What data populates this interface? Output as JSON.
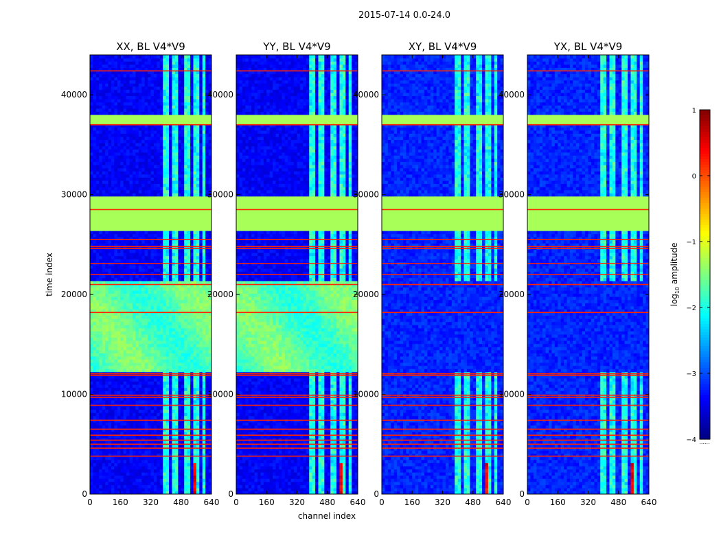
{
  "chart_data": {
    "type": "heatmap",
    "suptitle": "2015-07-14 0.0-24.0",
    "xlabel": "channel index",
    "ylabel": "time index",
    "xlim": [
      0,
      640
    ],
    "ylim": [
      0,
      44000
    ],
    "xticks": [
      0,
      160,
      320,
      480,
      640
    ],
    "yticks": [
      0,
      10000,
      20000,
      30000,
      40000
    ],
    "colormap": "jet",
    "colorbar": {
      "label": "log",
      "label_sub": "10",
      "label_rest": " amplitude",
      "range": [
        -4,
        1
      ],
      "ticks": [
        1,
        0,
        -1,
        -2,
        -3,
        -4
      ],
      "tick_labels": [
        "1",
        "0",
        "−1",
        "−2",
        "−3",
        "−4"
      ],
      "footnote": "......"
    },
    "panels": [
      {
        "title": "XX, BL V4*V9",
        "pol": "XX",
        "cross": false
      },
      {
        "title": "YY, BL V4*V9",
        "pol": "YY",
        "cross": false
      },
      {
        "title": "XY, BL V4*V9",
        "pol": "XY",
        "cross": true
      },
      {
        "title": "YX, BL V4*V9",
        "pol": "YX",
        "cross": true
      }
    ],
    "features": {
      "flagged_bands": [
        [
          26500,
          29700
        ],
        [
          37200,
          37900
        ]
      ],
      "flagged_value": -1.3,
      "background_value_auto": -3.4,
      "background_value_cross": -3.2,
      "auto_bright_region": [
        12400,
        21300
      ],
      "auto_bright_value": -1.7,
      "rfi_channels": [
        [
          390,
          415
        ],
        [
          425,
          440
        ],
        [
          450,
          470
        ],
        [
          500,
          530
        ],
        [
          540,
          560
        ],
        [
          565,
          575
        ],
        [
          600,
          610
        ]
      ],
      "rfi_value": -2.0,
      "strong_rfi_channels": [
        [
          525,
          560
        ]
      ],
      "red_lines": [
        3800,
        4600,
        5000,
        5400,
        5900,
        6500,
        7400,
        8900,
        9700,
        9900,
        11900,
        12050,
        18200,
        21000,
        22000,
        23100,
        24600,
        24800,
        25500,
        28500,
        37000,
        42400
      ]
    }
  }
}
